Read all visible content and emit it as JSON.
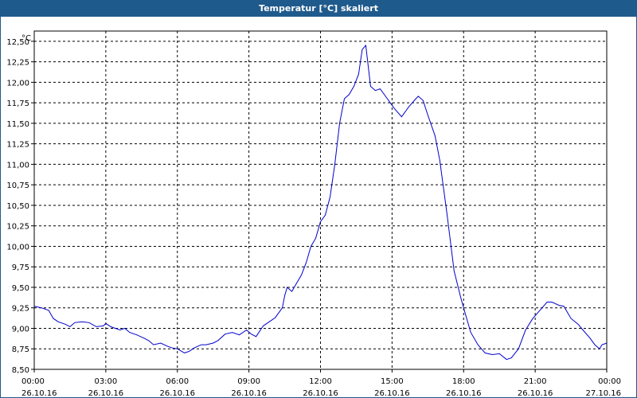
{
  "window": {
    "title": "Temperatur [°C] skaliert"
  },
  "chart_data": {
    "type": "line",
    "title": "Temperatur [°C] skaliert",
    "ylabel": "°C",
    "xlabel": "",
    "ylim": [
      8.5,
      12.625
    ],
    "xlim_hours": [
      0,
      24
    ],
    "grid": true,
    "line_color": "#0000cc",
    "y_ticks": [
      {
        "v": 8.5,
        "label": "8,50"
      },
      {
        "v": 8.75,
        "label": "8,75"
      },
      {
        "v": 9.0,
        "label": "9,00"
      },
      {
        "v": 9.25,
        "label": "9,25"
      },
      {
        "v": 9.5,
        "label": "9,50"
      },
      {
        "v": 9.75,
        "label": "9,75"
      },
      {
        "v": 10.0,
        "label": "10,00"
      },
      {
        "v": 10.25,
        "label": "10,25"
      },
      {
        "v": 10.5,
        "label": "10,50"
      },
      {
        "v": 10.75,
        "label": "10,75"
      },
      {
        "v": 11.0,
        "label": "11,00"
      },
      {
        "v": 11.25,
        "label": "11,25"
      },
      {
        "v": 11.5,
        "label": "11,50"
      },
      {
        "v": 11.75,
        "label": "11,75"
      },
      {
        "v": 12.0,
        "label": "12,00"
      },
      {
        "v": 12.25,
        "label": "12,25"
      },
      {
        "v": 12.5,
        "label": "12,50"
      }
    ],
    "x_ticks": [
      {
        "t": 0,
        "time": "00:00",
        "date": "26.10.16"
      },
      {
        "t": 3,
        "time": "03:00",
        "date": "26.10.16"
      },
      {
        "t": 6,
        "time": "06:00",
        "date": "26.10.16"
      },
      {
        "t": 9,
        "time": "09:00",
        "date": "26.10.16"
      },
      {
        "t": 12,
        "time": "12:00",
        "date": "26.10.16"
      },
      {
        "t": 15,
        "time": "15:00",
        "date": "26.10.16"
      },
      {
        "t": 18,
        "time": "18:00",
        "date": "26.10.16"
      },
      {
        "t": 21,
        "time": "21:00",
        "date": "26.10.16"
      },
      {
        "t": 24,
        "time": "00:00",
        "date": "27.10.16"
      }
    ],
    "series": [
      {
        "x": [
          0,
          0.3,
          0.6,
          0.8,
          1.0,
          1.3,
          1.5,
          1.7,
          2.0,
          2.3,
          2.6,
          2.9,
          3.0,
          3.2,
          3.4,
          3.6,
          3.8,
          4.0,
          4.3,
          4.6,
          4.8,
          5.0,
          5.3,
          5.6,
          5.8,
          6.0,
          6.3,
          6.5,
          6.7,
          7.0,
          7.2,
          7.5,
          7.7,
          8.0,
          8.3,
          8.6,
          8.9,
          9.1,
          9.3,
          9.6,
          9.8,
          10.1,
          10.4,
          10.5,
          10.6,
          10.8,
          11.0,
          11.2,
          11.4,
          11.6,
          11.8,
          12.0,
          12.2,
          12.4,
          12.6,
          12.8,
          13.0,
          13.2,
          13.4,
          13.6,
          13.75,
          13.9,
          14.0,
          14.1,
          14.3,
          14.5,
          14.8,
          15.1,
          15.4,
          15.7,
          16.0,
          16.1,
          16.3,
          16.5,
          16.8,
          17.0,
          17.3,
          17.6,
          17.9,
          18.1,
          18.3,
          18.6,
          18.9,
          19.2,
          19.5,
          19.8,
          20.0,
          20.3,
          20.6,
          20.9,
          21.2,
          21.5,
          21.7,
          22.0,
          22.2,
          22.5,
          22.8,
          23.0,
          23.3,
          23.5,
          23.7,
          23.8,
          24.0
        ],
        "y": [
          9.27,
          9.25,
          9.22,
          9.12,
          9.08,
          9.05,
          9.02,
          9.07,
          9.08,
          9.07,
          9.02,
          9.03,
          9.06,
          9.02,
          9.0,
          8.98,
          9.0,
          8.95,
          8.92,
          8.88,
          8.85,
          8.8,
          8.82,
          8.78,
          8.76,
          8.75,
          8.7,
          8.72,
          8.76,
          8.8,
          8.8,
          8.82,
          8.85,
          8.93,
          8.95,
          8.92,
          8.98,
          8.93,
          8.9,
          9.03,
          9.07,
          9.13,
          9.25,
          9.4,
          9.5,
          9.45,
          9.55,
          9.65,
          9.8,
          10.0,
          10.1,
          10.3,
          10.38,
          10.6,
          11.0,
          11.5,
          11.8,
          11.85,
          11.95,
          12.1,
          12.4,
          12.45,
          12.2,
          11.95,
          11.9,
          11.92,
          11.8,
          11.68,
          11.58,
          11.7,
          11.8,
          11.83,
          11.78,
          11.6,
          11.35,
          11.05,
          10.4,
          9.7,
          9.35,
          9.15,
          8.95,
          8.8,
          8.7,
          8.68,
          8.69,
          8.62,
          8.64,
          8.75,
          8.98,
          9.12,
          9.22,
          9.32,
          9.32,
          9.28,
          9.27,
          9.12,
          9.05,
          8.98,
          8.88,
          8.8,
          8.75,
          8.8,
          8.82
        ]
      }
    ]
  }
}
